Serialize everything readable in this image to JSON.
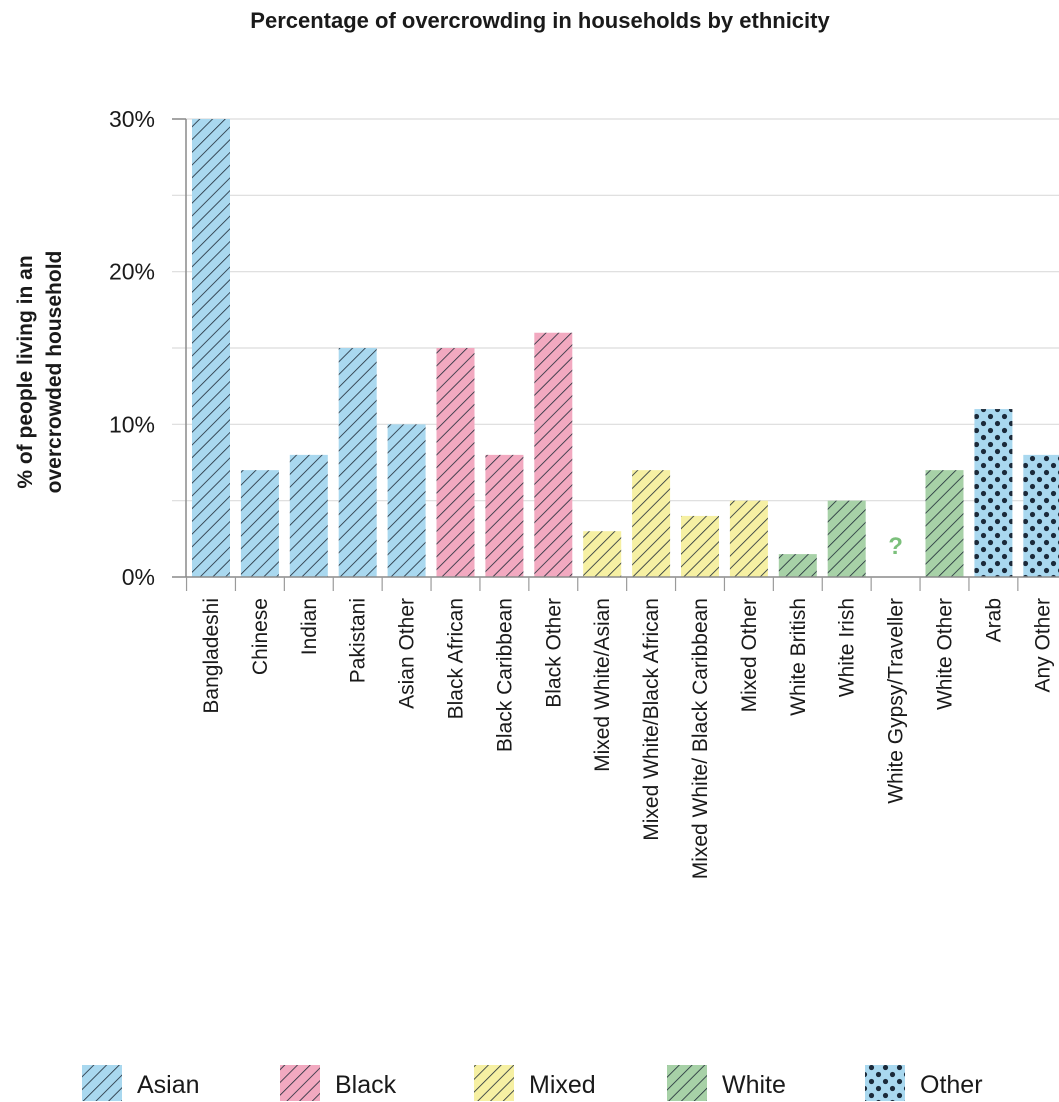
{
  "chart_data": {
    "type": "bar",
    "title": "Percentage of overcrowding in households by ethnicity",
    "ylabel": "% of people living in an overcrowded household",
    "ylabel_lines": [
      "% of people living in an",
      "overcrowded household"
    ],
    "xlabel": "",
    "ylim": [
      0,
      30
    ],
    "yticks": [
      {
        "value": 0,
        "label": "0%"
      },
      {
        "value": 10,
        "label": "10%"
      },
      {
        "value": 20,
        "label": "20%"
      },
      {
        "value": 30,
        "label": "30%"
      }
    ],
    "grid": true,
    "legend_position": "bottom",
    "groups": [
      {
        "name": "Asian",
        "color": "#a9d8ef",
        "pattern": "hatch"
      },
      {
        "name": "Black",
        "color": "#f2a9c0",
        "pattern": "hatch"
      },
      {
        "name": "Mixed",
        "color": "#f6f0a3",
        "pattern": "hatch"
      },
      {
        "name": "White",
        "color": "#a7d1a7",
        "pattern": "hatch"
      },
      {
        "name": "Other",
        "color": "#a9d8ef",
        "pattern": "dots"
      }
    ],
    "bars": [
      {
        "category": "Bangladeshi",
        "value": 30,
        "group": "Asian"
      },
      {
        "category": "Chinese",
        "value": 7,
        "group": "Asian"
      },
      {
        "category": "Indian",
        "value": 8,
        "group": "Asian"
      },
      {
        "category": "Pakistani",
        "value": 15,
        "group": "Asian"
      },
      {
        "category": "Asian Other",
        "value": 10,
        "group": "Asian"
      },
      {
        "category": "Black African",
        "value": 15,
        "group": "Black"
      },
      {
        "category": "Black Caribbean",
        "value": 8,
        "group": "Black"
      },
      {
        "category": "Black Other",
        "value": 16,
        "group": "Black"
      },
      {
        "category": "Mixed White/Asian",
        "value": 3,
        "group": "Mixed"
      },
      {
        "category": "Mixed White/Black African",
        "value": 7,
        "group": "Mixed"
      },
      {
        "category": "Mixed White/ Black Caribbean",
        "value": 4,
        "group": "Mixed"
      },
      {
        "category": "Mixed Other",
        "value": 5,
        "group": "Mixed"
      },
      {
        "category": "White British",
        "value": 1.5,
        "group": "White"
      },
      {
        "category": "White Irish",
        "value": 5,
        "group": "White"
      },
      {
        "category": "White Gypsy/Traveller",
        "value": null,
        "group": "White",
        "unknown_label": "?"
      },
      {
        "category": "White Other",
        "value": 7,
        "group": "White"
      },
      {
        "category": "Arab",
        "value": 11,
        "group": "Other"
      },
      {
        "category": "Any Other",
        "value": 8,
        "group": "Other"
      }
    ]
  }
}
